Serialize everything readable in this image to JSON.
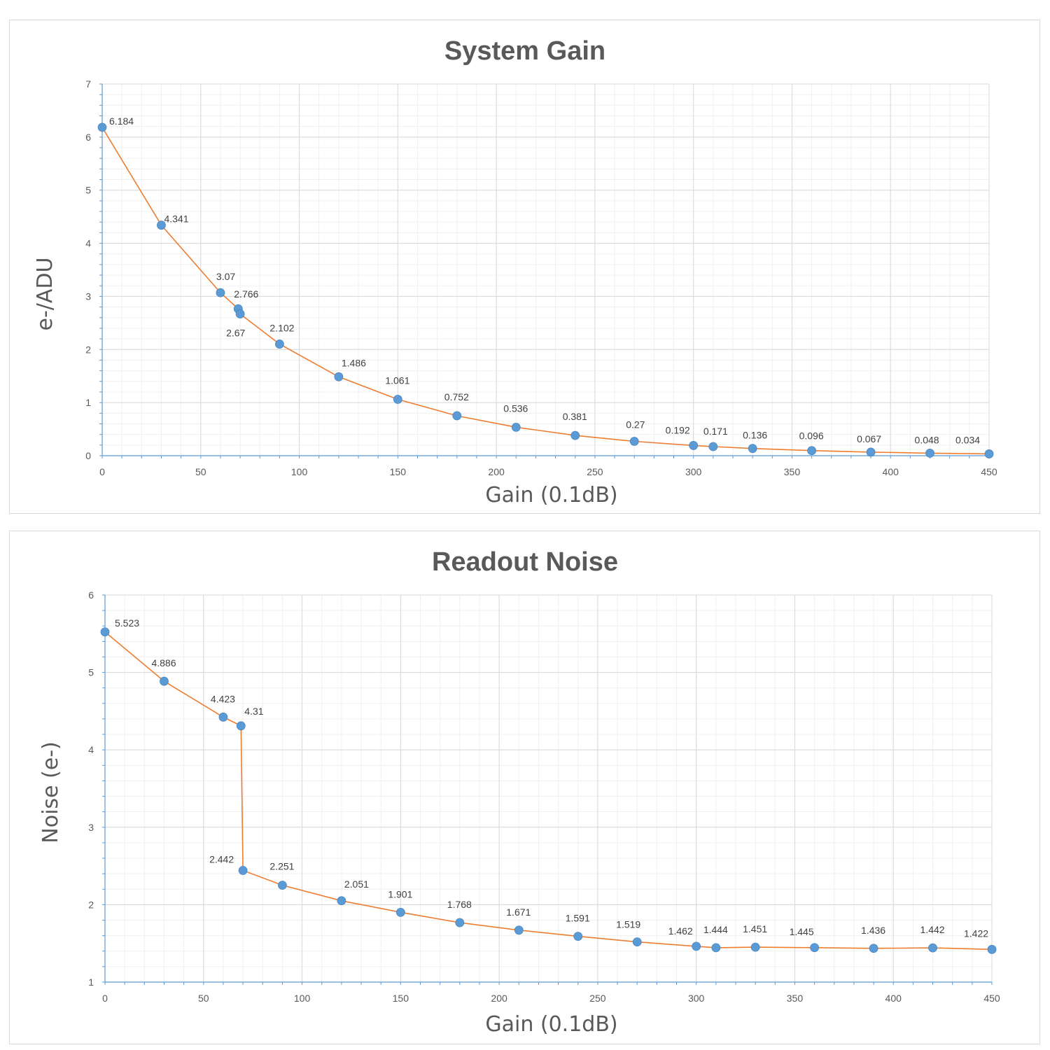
{
  "chart_data": [
    {
      "type": "line",
      "title": "System Gain",
      "xlabel": "Gain (0.1dB)",
      "ylabel": "e-/ADU",
      "xlim": [
        0,
        450
      ],
      "ylim": [
        0,
        7
      ],
      "xticks": [
        0,
        50,
        100,
        150,
        200,
        250,
        300,
        350,
        400,
        450
      ],
      "yticks": [
        0,
        1,
        2,
        3,
        4,
        5,
        6,
        7
      ],
      "grid": true,
      "marker_color": "#5b9bd5",
      "line_color": "#ed7d31",
      "series": [
        {
          "x": [
            0,
            30,
            60,
            69,
            70,
            90,
            120,
            150,
            180,
            210,
            240,
            270,
            300,
            310,
            330,
            360,
            390,
            420,
            450
          ],
          "y": [
            6.184,
            4.341,
            3.07,
            2.766,
            2.67,
            2.102,
            1.486,
            1.061,
            0.752,
            0.536,
            0.381,
            0.27,
            0.192,
            0.171,
            0.136,
            0.096,
            0.067,
            0.048,
            0.034
          ],
          "labels": [
            "6.184",
            "4.341",
            "3.07",
            "2.766",
            "2.67",
            "2.102",
            "1.486",
            "1.061",
            "0.752",
            "0.536",
            "0.381",
            "0.27",
            "0.192",
            "0.171",
            "0.136",
            "0.096",
            "0.067",
            "0.048",
            "0.034"
          ]
        }
      ]
    },
    {
      "type": "line",
      "title": "Readout Noise",
      "xlabel": "Gain (0.1dB)",
      "ylabel": "Noise (e-)",
      "xlim": [
        0,
        450
      ],
      "ylim": [
        1,
        6
      ],
      "xticks": [
        0,
        50,
        100,
        150,
        200,
        250,
        300,
        350,
        400,
        450
      ],
      "yticks": [
        1,
        2,
        3,
        4,
        5,
        6
      ],
      "grid": true,
      "marker_color": "#5b9bd5",
      "line_color": "#ed7d31",
      "series": [
        {
          "x": [
            0,
            30,
            60,
            69,
            70,
            90,
            120,
            150,
            180,
            210,
            240,
            270,
            300,
            310,
            330,
            360,
            390,
            420,
            450
          ],
          "y": [
            5.523,
            4.886,
            4.423,
            4.31,
            2.442,
            2.251,
            2.051,
            1.901,
            1.768,
            1.671,
            1.591,
            1.519,
            1.462,
            1.444,
            1.451,
            1.445,
            1.436,
            1.442,
            1.422
          ],
          "labels": [
            "5.523",
            "4.886",
            "4.423",
            "4.31",
            "2.442",
            "2.251",
            "2.051",
            "1.901",
            "1.768",
            "1.671",
            "1.591",
            "1.519",
            "1.462",
            "1.444",
            "1.451",
            "1.445",
            "1.436",
            "1.442",
            "1.422"
          ]
        }
      ]
    }
  ]
}
